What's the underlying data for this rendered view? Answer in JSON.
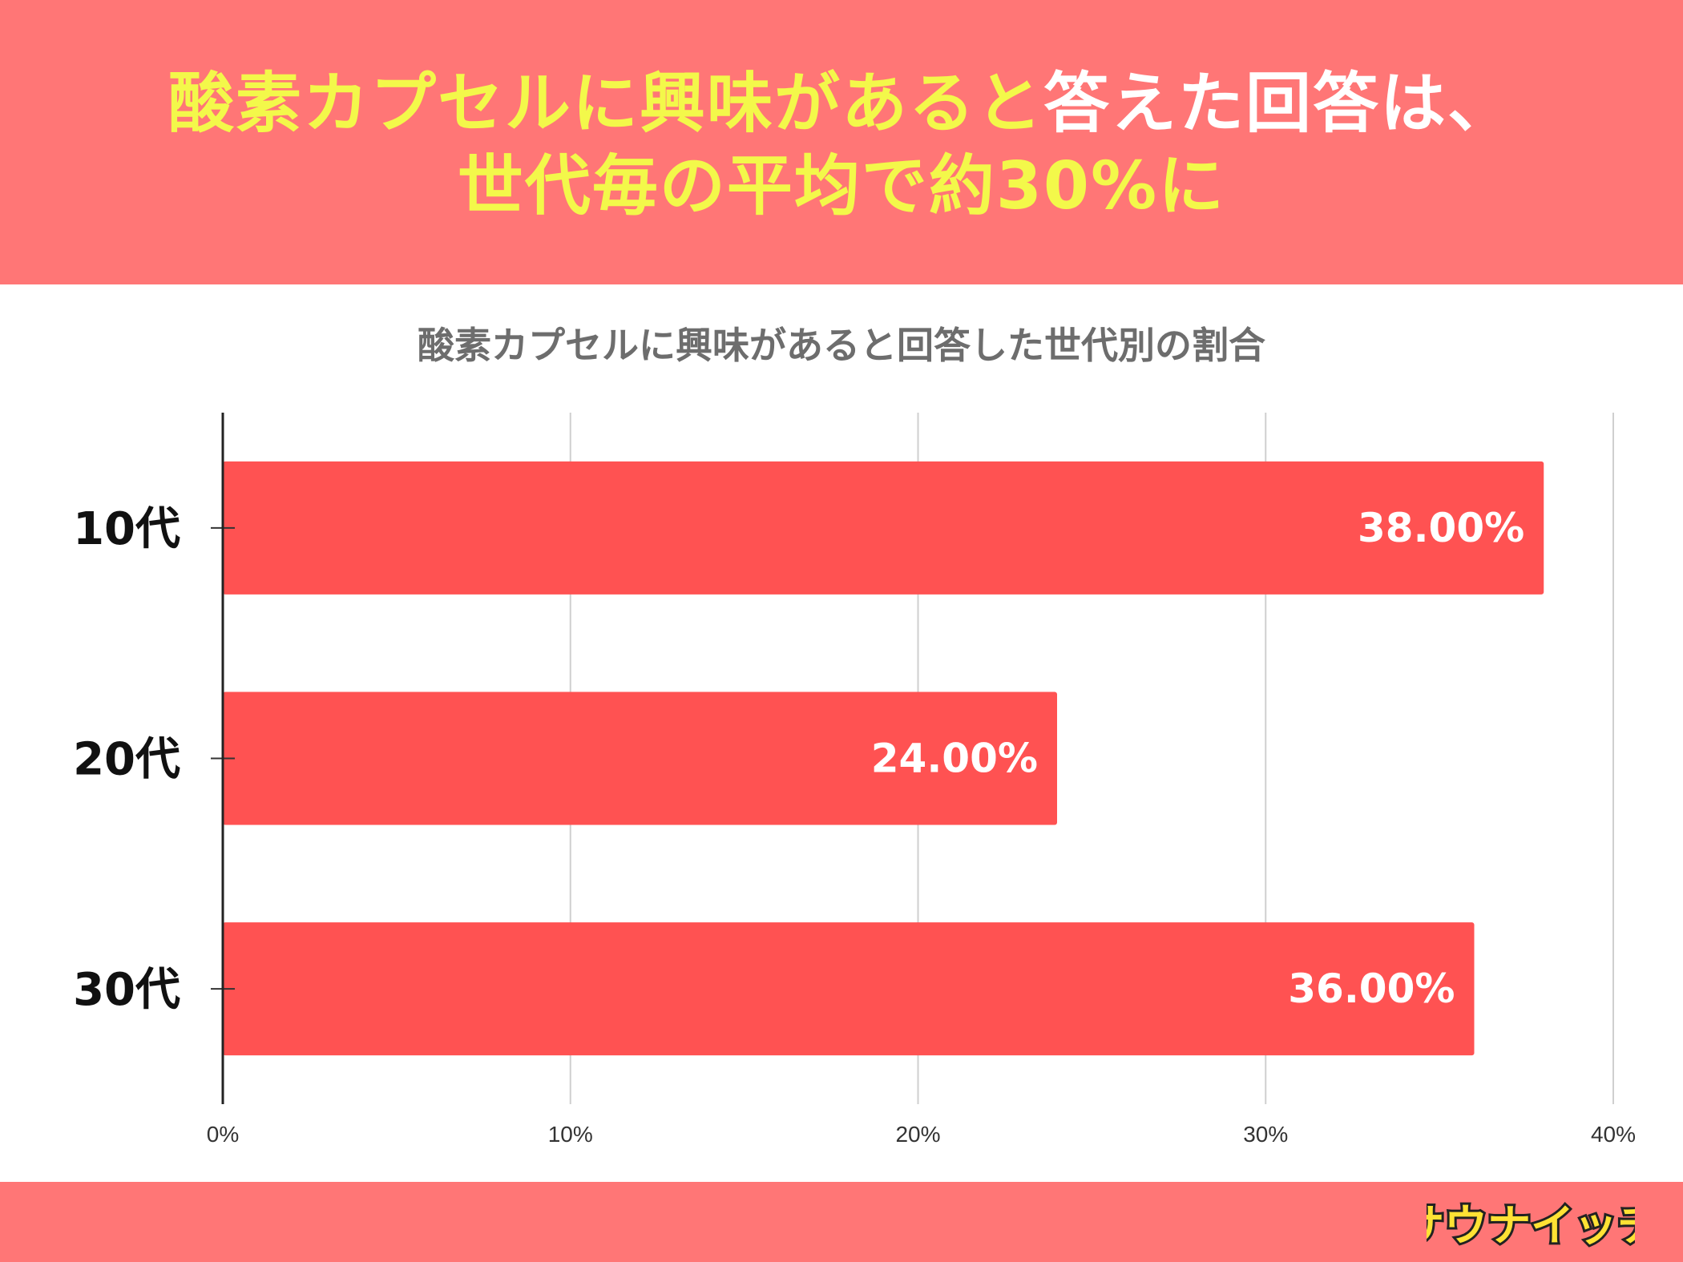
{
  "headline": {
    "line1_yellow": "酸素カプセルに興味があると",
    "line1_white": "答えた回答は、",
    "line2": "世代毎の平均で約30%に"
  },
  "chart_data": {
    "type": "bar",
    "orientation": "horizontal",
    "title": "酸素カプセルに興味があると回答した世代別の割合",
    "categories": [
      "10代",
      "20代",
      "30代"
    ],
    "values": [
      38,
      24,
      36
    ],
    "data_labels": [
      "38.00%",
      "24.00%",
      "36.00%"
    ],
    "xlim": [
      0,
      40
    ],
    "xticks": [
      "0%",
      "10%",
      "20%",
      "30%",
      "40%"
    ],
    "xlabel": "",
    "ylabel": "",
    "grid": true,
    "bar_color": "#ff5252"
  },
  "logo": {
    "text": "サウナイッチ"
  },
  "colors": {
    "banner": "#ff7676",
    "headline_yellow": "#f3f84a",
    "headline_white": "#ffffff",
    "bar": "#ff5252"
  }
}
